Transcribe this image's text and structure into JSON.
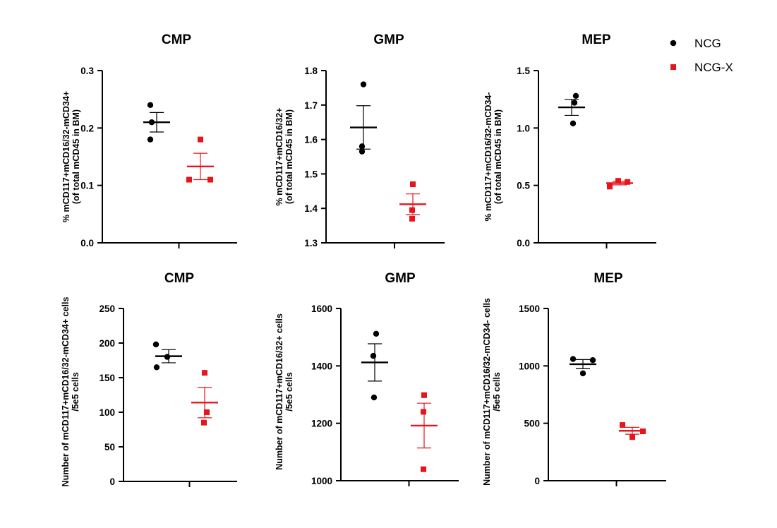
{
  "legend": {
    "items": [
      {
        "label": "NCG",
        "marker": "circle",
        "color": "#000000"
      },
      {
        "label": "NCG-X",
        "marker": "square",
        "color": "#e8141b"
      }
    ]
  },
  "chart_data": [
    {
      "type": "scatter",
      "title": "CMP",
      "ylabel_lines": [
        "% mCD117+mCD16/32-mCD34+",
        "(of total  mCD45 in BM)"
      ],
      "ylim": [
        0,
        0.3
      ],
      "yticks": [
        0.0,
        0.1,
        0.2,
        0.3
      ],
      "ytick_labels": [
        "0.0",
        "0.1",
        "0.2",
        "0.3"
      ],
      "series": [
        {
          "name": "NCG",
          "points": [
            0.24,
            0.21,
            0.18
          ],
          "mean": 0.21,
          "sem": 0.017
        },
        {
          "name": "NCG-X",
          "points": [
            0.18,
            0.11,
            0.11
          ],
          "mean": 0.133,
          "sem": 0.023
        }
      ]
    },
    {
      "type": "scatter",
      "title": "GMP",
      "ylabel_lines": [
        "% mCD117+mCD16/32+",
        "(of total  mCD45 in BM)"
      ],
      "ylim": [
        1.3,
        1.8
      ],
      "yticks": [
        1.3,
        1.4,
        1.5,
        1.6,
        1.7,
        1.8
      ],
      "ytick_labels": [
        "1.3",
        "1.4",
        "1.5",
        "1.6",
        "1.7",
        "1.8"
      ],
      "series": [
        {
          "name": "NCG",
          "points": [
            1.76,
            1.58,
            1.565
          ],
          "mean": 1.635,
          "sem": 0.063
        },
        {
          "name": "NCG-X",
          "points": [
            1.47,
            1.395,
            1.37
          ],
          "mean": 1.412,
          "sem": 0.03
        }
      ]
    },
    {
      "type": "scatter",
      "title": "MEP",
      "ylabel_lines": [
        "% mCD117+mCD16/32-mCD34-",
        "(of total  mCD45 in BM)"
      ],
      "ylim": [
        0,
        1.5
      ],
      "yticks": [
        0.0,
        0.5,
        1.0,
        1.5
      ],
      "ytick_labels": [
        "0.0",
        "0.5",
        "1.0",
        "1.5"
      ],
      "series": [
        {
          "name": "NCG",
          "points": [
            1.28,
            1.22,
            1.04
          ],
          "mean": 1.18,
          "sem": 0.07
        },
        {
          "name": "NCG-X",
          "points": [
            0.54,
            0.53,
            0.49
          ],
          "mean": 0.52,
          "sem": 0.015
        }
      ]
    },
    {
      "type": "scatter",
      "title": "CMP",
      "ylabel_lines": [
        "Number of  mCD117+mCD16/32-mCD34+ cells",
        "/5e5 cells"
      ],
      "ylim": [
        0,
        250
      ],
      "yticks": [
        0,
        50,
        100,
        150,
        200,
        250
      ],
      "ytick_labels": [
        "0",
        "50",
        "100",
        "150",
        "200",
        "250"
      ],
      "series": [
        {
          "name": "NCG",
          "points": [
            198,
            180,
            165
          ],
          "mean": 181,
          "sem": 9.5
        },
        {
          "name": "NCG-X",
          "points": [
            157,
            100,
            85
          ],
          "mean": 114,
          "sem": 22
        }
      ]
    },
    {
      "type": "scatter",
      "title": "GMP",
      "ylabel_lines": [
        "Number of   mCD117+mCD16/32+ cells",
        "/5e5 cells"
      ],
      "ylim": [
        1000,
        1600
      ],
      "yticks": [
        1000,
        1200,
        1400,
        1600
      ],
      "ytick_labels": [
        "1000",
        "1200",
        "1400",
        "1600"
      ],
      "series": [
        {
          "name": "NCG",
          "points": [
            1512,
            1435,
            1290
          ],
          "mean": 1412,
          "sem": 65
        },
        {
          "name": "NCG-X",
          "points": [
            1298,
            1240,
            1040
          ],
          "mean": 1192,
          "sem": 78
        }
      ]
    },
    {
      "type": "scatter",
      "title": "MEP",
      "ylabel_lines": [
        "Number of   mCD117+mCD16/32-mCD34- cells",
        "/5e5 cells"
      ],
      "ylim": [
        0,
        1500
      ],
      "yticks": [
        0,
        500,
        1000,
        1500
      ],
      "ytick_labels": [
        "0",
        "500",
        "1000",
        "1500"
      ],
      "series": [
        {
          "name": "NCG",
          "points": [
            1060,
            1050,
            935
          ],
          "mean": 1015,
          "sem": 40
        },
        {
          "name": "NCG-X",
          "points": [
            485,
            430,
            380
          ],
          "mean": 435,
          "sem": 30
        }
      ]
    }
  ]
}
